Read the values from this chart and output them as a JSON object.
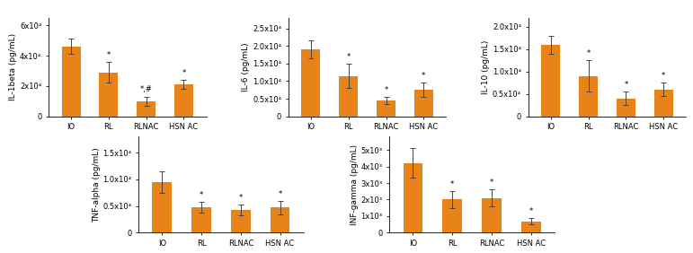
{
  "subplots": [
    {
      "ylabel": "IL-1beta (pg/mL)",
      "categories": [
        "IO",
        "RL",
        "RLNAC",
        "HSN AC"
      ],
      "values": [
        46000,
        29000,
        10000,
        21000
      ],
      "errors": [
        5000,
        7000,
        3000,
        3000
      ],
      "ylim": [
        0,
        65000
      ],
      "yticks": [
        0,
        20000,
        40000,
        60000
      ],
      "ytick_labels": [
        "0",
        "2x10⁴",
        "4x10⁴",
        "6x10⁴"
      ],
      "annotations": [
        "",
        "*",
        "*,#",
        "*"
      ]
    },
    {
      "ylabel": "IL-6 (pg/mL)",
      "categories": [
        "IO",
        "RL",
        "RLNAC",
        "HSN AC"
      ],
      "values": [
        19000,
        11500,
        4500,
        7500
      ],
      "errors": [
        2500,
        3500,
        1000,
        2000
      ],
      "ylim": [
        0,
        28000
      ],
      "yticks": [
        0,
        5000,
        10000,
        15000,
        20000,
        25000
      ],
      "ytick_labels": [
        "0",
        "0.5x10⁴",
        "1.0x10⁴",
        "1.5x10⁴",
        "2.0x10⁴",
        "2.5x10⁴"
      ],
      "annotations": [
        "",
        "*",
        "*",
        "*"
      ]
    },
    {
      "ylabel": "IL-10 (pg/mL)",
      "categories": [
        "IO",
        "RL",
        "RLNAC",
        "HSN AC"
      ],
      "values": [
        16000,
        9000,
        4000,
        6000
      ],
      "errors": [
        2000,
        3500,
        1500,
        1500
      ],
      "ylim": [
        0,
        22000
      ],
      "yticks": [
        0,
        5000,
        10000,
        15000,
        20000
      ],
      "ytick_labels": [
        "0",
        "0.5x10⁴",
        "1.0x10⁴",
        "1.5x10⁴",
        "2.0x10⁴"
      ],
      "annotations": [
        "",
        "*",
        "*",
        "*"
      ]
    },
    {
      "ylabel": "TNF-alpha (pg/mL)",
      "categories": [
        "IO",
        "RL",
        "RLNAC",
        "HSN AC"
      ],
      "values": [
        9500,
        4800,
        4200,
        4700
      ],
      "errors": [
        2000,
        1000,
        1000,
        1200
      ],
      "ylim": [
        0,
        18000
      ],
      "yticks": [
        0,
        5000,
        10000,
        15000
      ],
      "ytick_labels": [
        "0",
        "0.5x10⁴",
        "1.0x10⁴",
        "1.5x10⁴"
      ],
      "annotations": [
        "",
        "*",
        "*",
        "*"
      ]
    },
    {
      "ylabel": "INF-gamma (pg/mL)",
      "categories": [
        "IO",
        "RL",
        "RLNAC",
        "HSN AC"
      ],
      "values": [
        4200,
        2000,
        2100,
        700
      ],
      "errors": [
        900,
        500,
        500,
        200
      ],
      "ylim": [
        0,
        5800
      ],
      "yticks": [
        0,
        1000,
        2000,
        3000,
        4000,
        5000
      ],
      "ytick_labels": [
        "0",
        "1x10³",
        "2x10³",
        "3x10³",
        "4x10³",
        "5x10³"
      ],
      "annotations": [
        "",
        "*",
        "*",
        "*"
      ]
    }
  ],
  "bar_color": "#E8831A",
  "error_color": "#444444",
  "bar_width": 0.5,
  "annotation_fontsize": 6,
  "ylabel_fontsize": 6.5,
  "tick_fontsize": 6,
  "xtick_fontsize": 6
}
